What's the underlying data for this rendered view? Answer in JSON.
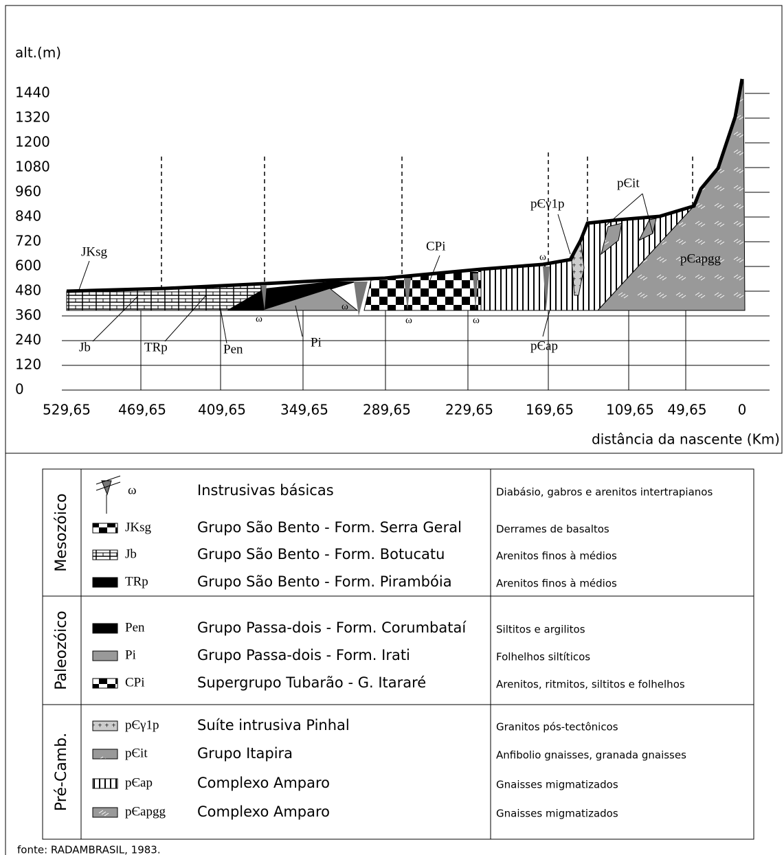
{
  "profile": {
    "y_axis_label": "alt.(m)",
    "y_ticks": [
      0,
      120,
      240,
      360,
      480,
      600,
      720,
      840,
      960,
      1080,
      1200,
      1320,
      1440
    ],
    "x_ticks": [
      "529,65",
      "469,65",
      "409,65",
      "349,65",
      "289,65",
      "229,65",
      "169,65",
      "109,65",
      "49,65",
      "0"
    ],
    "x_axis_label": "distância da nascente (Km)",
    "labels": [
      "JKsg",
      "Jb",
      "TRp",
      "Pen",
      "Pi",
      "CPi",
      "pЄγ1p",
      "pЄit",
      "pЄapgg",
      "pЄap",
      "ω",
      "ω",
      "ω",
      "ω",
      "ω"
    ]
  },
  "legend": {
    "groups": [
      {
        "era": "Mesozóico",
        "rows": [
          {
            "code": "ω",
            "name": "Instrusivas básicas",
            "description": "Diabásio, gabros e arenitos intertrapianos"
          },
          {
            "code": "JKsg",
            "name": "Grupo São Bento - Form. Serra Geral",
            "description": "Derrames de basaltos"
          },
          {
            "code": "Jb",
            "name": "Grupo São Bento - Form. Botucatu",
            "description": "Arenitos finos à médios"
          },
          {
            "code": "TRp",
            "name": "Grupo São Bento - Form. Pirambóia",
            "description": "Arenitos finos à médios"
          }
        ]
      },
      {
        "era": "Paleozóico",
        "rows": [
          {
            "code": "Pen",
            "name": "Grupo Passa-dois - Form. Corumbataí",
            "description": "Siltitos e argilitos"
          },
          {
            "code": "Pi",
            "name": "Grupo Passa-dois - Form. Irati",
            "description": "Folhelhos siltíticos"
          },
          {
            "code": "CPi",
            "name": "Supergrupo Tubarão - G. Itararé",
            "description": "Arenitos, ritmitos, siltitos e folhelhos"
          }
        ]
      },
      {
        "era": "Pré-Camb.",
        "rows": [
          {
            "code": "pЄγ1p",
            "name": "Suíte intrusiva Pinhal",
            "description": "Granitos pós-tectônicos"
          },
          {
            "code": "pЄit",
            "name": "Grupo Itapira",
            "description": "Anfibolio gnaisses, granada gnaisses"
          },
          {
            "code": "pЄap",
            "name": "Complexo Amparo",
            "description": "Gnaisses migmatizados"
          },
          {
            "code": "pЄapgg",
            "name": "Complexo Amparo",
            "description": "Gnaisses migmatizados"
          }
        ]
      }
    ]
  },
  "source": "fonte: RADAMBRASIL, 1983."
}
